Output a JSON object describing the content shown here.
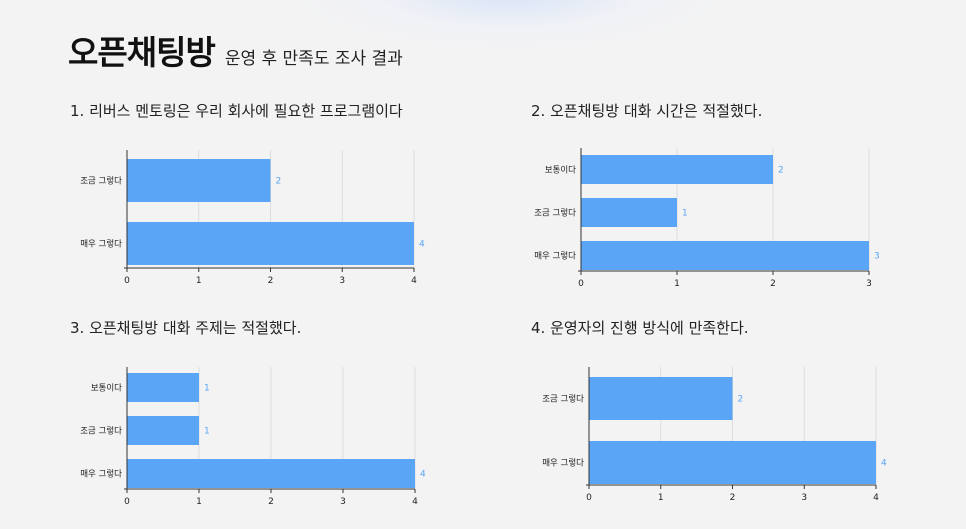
{
  "header": {
    "title_main": "오픈채팅방",
    "title_sub": "운영 후 만족도 조사 결과"
  },
  "bar_color": "#5aa5f5",
  "value_label_color": "#5aa5f5",
  "grid_color": "#dcdcdc",
  "chart_data": [
    {
      "type": "bar",
      "orientation": "horizontal",
      "title": "1. 리버스 멘토링은 우리 회사에 필요한 프로그램이다",
      "categories": [
        "조금 그렇다",
        "매우 그렇다"
      ],
      "values": [
        2,
        4
      ],
      "xlim": [
        0,
        4
      ],
      "xticks": [
        0,
        1,
        2,
        3,
        4
      ],
      "grid": true
    },
    {
      "type": "bar",
      "orientation": "horizontal",
      "title": "2. 오픈채팅방 대화 시간은 적절했다.",
      "categories": [
        "보통이다",
        "조금 그렇다",
        "매우 그렇다"
      ],
      "values": [
        2,
        1,
        3
      ],
      "xlim": [
        0,
        3
      ],
      "xticks": [
        0,
        1,
        2,
        3
      ],
      "grid": true
    },
    {
      "type": "bar",
      "orientation": "horizontal",
      "title": "3. 오픈채팅방 대화 주제는 적절했다.",
      "categories": [
        "보통이다",
        "조금 그렇다",
        "매우 그렇다"
      ],
      "values": [
        1,
        1,
        4
      ],
      "xlim": [
        0,
        4
      ],
      "xticks": [
        0,
        1,
        2,
        3,
        4
      ],
      "grid": true
    },
    {
      "type": "bar",
      "orientation": "horizontal",
      "title": "4. 운영자의 진행 방식에 만족한다.",
      "categories": [
        "조금 그렇다",
        "매우 그렇다"
      ],
      "values": [
        2,
        4
      ],
      "xlim": [
        0,
        4
      ],
      "xticks": [
        0,
        1,
        2,
        3,
        4
      ],
      "grid": true
    }
  ]
}
